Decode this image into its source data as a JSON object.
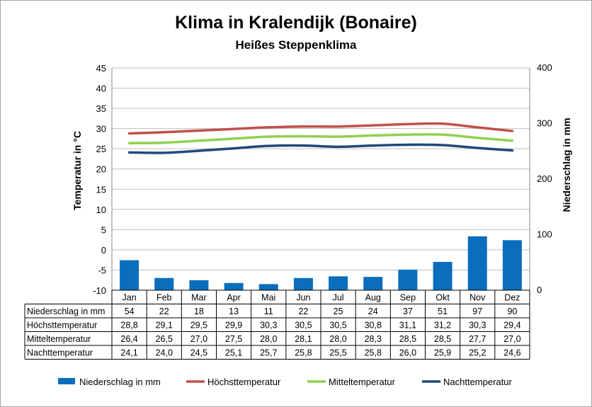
{
  "chart_data": {
    "type": "bar+line",
    "title": "Klima in Kralendijk (Bonaire)",
    "subtitle": "Heißes Steppenklima",
    "ylabel": "Temperatur in °C",
    "y2label": "Niederschlag in mm",
    "ylim": [
      -10,
      45
    ],
    "y2lim": [
      0,
      400
    ],
    "yticks": [
      45,
      40,
      35,
      30,
      25,
      20,
      15,
      10,
      5,
      0,
      -5,
      -10
    ],
    "y2ticks": [
      400,
      300,
      200,
      100,
      0
    ],
    "grid": true,
    "legend": "bottom",
    "categories": [
      "Jan",
      "Feb",
      "Mar",
      "Apr",
      "Mai",
      "Jun",
      "Jul",
      "Aug",
      "Sep",
      "Okt",
      "Nov",
      "Dez"
    ],
    "series": [
      {
        "name": "Niederschlag in mm",
        "type": "bar",
        "axis": "right",
        "color": "#0a6ebd",
        "values": [
          54,
          22,
          18,
          13,
          11,
          22,
          25,
          24,
          37,
          51,
          97,
          90
        ],
        "labels": [
          "54",
          "22",
          "18",
          "13",
          "11",
          "22",
          "25",
          "24",
          "37",
          "51",
          "97",
          "90"
        ]
      },
      {
        "name": "Höchsttemperatur",
        "type": "line",
        "axis": "left",
        "color": "#c0504d",
        "values": [
          28.8,
          29.1,
          29.5,
          29.9,
          30.3,
          30.5,
          30.5,
          30.8,
          31.1,
          31.2,
          30.3,
          29.4
        ],
        "labels": [
          "28,8",
          "29,1",
          "29,5",
          "29,9",
          "30,3",
          "30,5",
          "30,5",
          "30,8",
          "31,1",
          "31,2",
          "30,3",
          "29,4"
        ]
      },
      {
        "name": "Mitteltemperatur",
        "type": "line",
        "axis": "left",
        "color": "#92d050",
        "values": [
          26.4,
          26.5,
          27.0,
          27.5,
          28.0,
          28.1,
          28.0,
          28.3,
          28.5,
          28.5,
          27.7,
          27.0
        ],
        "labels": [
          "26,4",
          "26,5",
          "27,0",
          "27,5",
          "28,0",
          "28,1",
          "28,0",
          "28,3",
          "28,5",
          "28,5",
          "27,7",
          "27,0"
        ]
      },
      {
        "name": "Nachttemperatur",
        "type": "line",
        "axis": "left",
        "color": "#1f497d",
        "values": [
          24.1,
          24.0,
          24.5,
          25.1,
          25.7,
          25.8,
          25.5,
          25.8,
          26.0,
          25.9,
          25.2,
          24.6
        ],
        "labels": [
          "24,1",
          "24,0",
          "24,5",
          "25,1",
          "25,7",
          "25,8",
          "25,5",
          "25,8",
          "26,0",
          "25,9",
          "25,2",
          "24,6"
        ]
      }
    ]
  }
}
